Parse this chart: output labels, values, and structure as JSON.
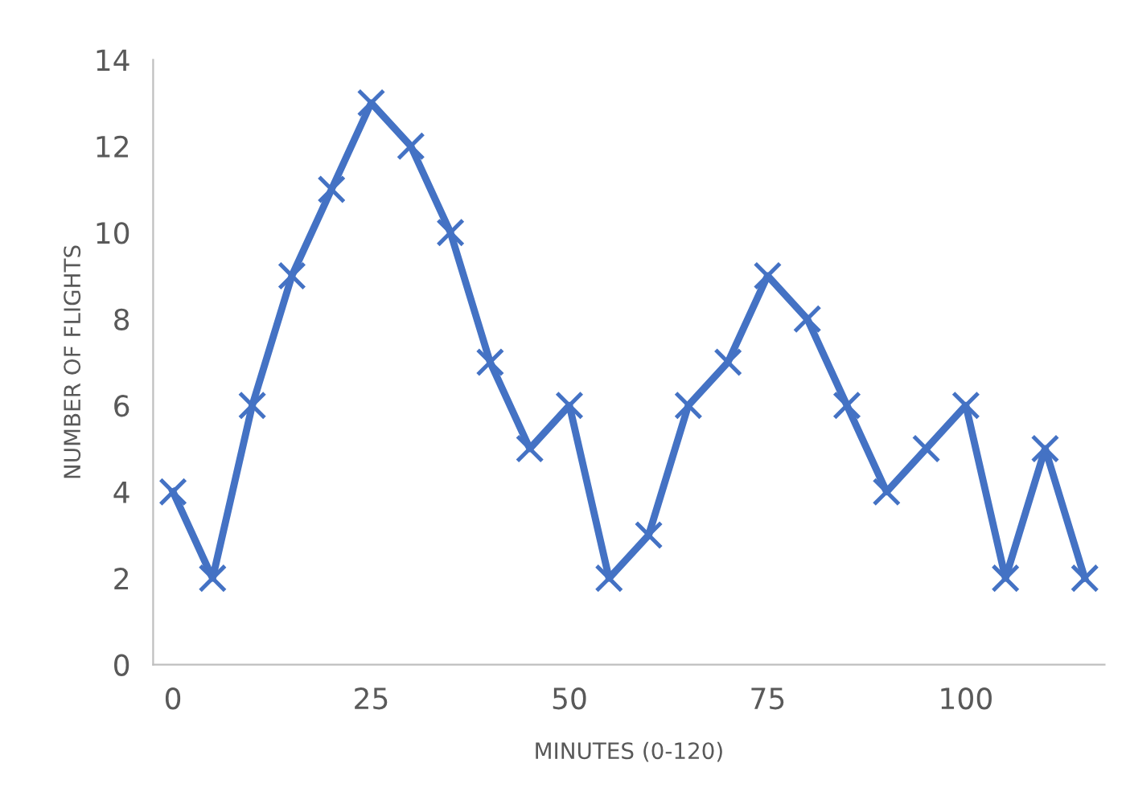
{
  "chart_data": {
    "type": "line",
    "xlabel": "MINUTES (0-120)",
    "ylabel": "NUMBER OF FLIGHTS",
    "x": [
      0,
      5,
      10,
      15,
      20,
      25,
      30,
      35,
      40,
      45,
      50,
      55,
      60,
      65,
      70,
      75,
      80,
      85,
      90,
      95,
      100,
      105,
      110,
      115
    ],
    "series": [
      {
        "color": "#4472c4",
        "values": [
          4,
          2,
          6,
          9,
          11,
          13,
          12,
          10,
          7,
          5,
          6,
          2,
          3,
          6,
          7,
          9,
          8,
          6,
          4,
          5,
          6,
          2,
          5,
          2
        ]
      }
    ],
    "xlim": [
      -2.5,
      117.5
    ],
    "xticks": [
      0,
      25,
      50,
      75,
      100
    ],
    "ylim": [
      0,
      14
    ],
    "yticks": [
      0,
      2,
      4,
      6,
      8,
      10,
      12,
      14
    ],
    "grid": false,
    "legend": false,
    "marker": "cross",
    "line_style": "solid"
  }
}
